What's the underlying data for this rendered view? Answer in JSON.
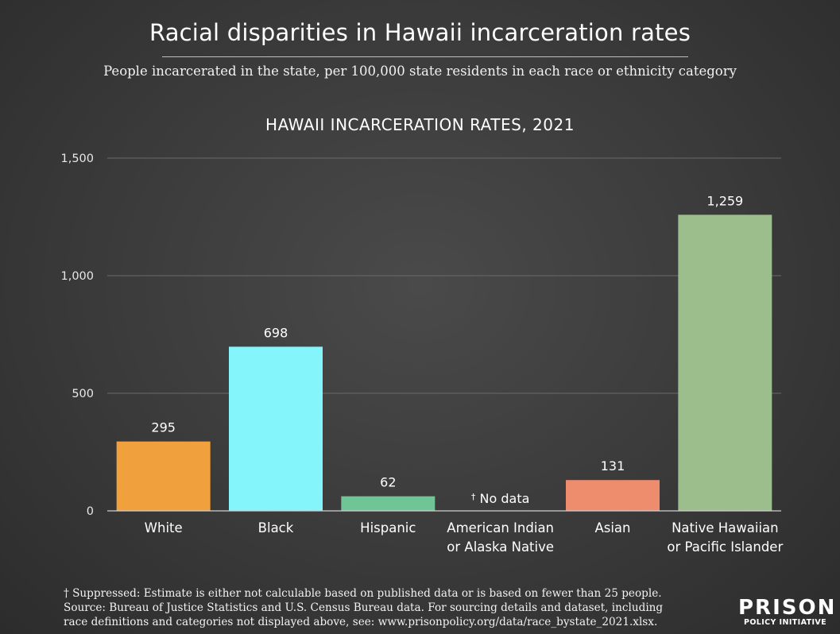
{
  "title": "Racial disparities in Hawaii incarceration rates",
  "subtitle": "People incarcerated in the state, per 100,000 state residents in each race or ethnicity category",
  "footnote": {
    "line1": "† Suppressed: Estimate is either not calculable based on published data or is based on fewer than 25 people.",
    "line2": "Source: Bureau of Justice Statistics and U.S. Census Bureau data. For sourcing details and dataset, including",
    "line3": "race definitions and categories not displayed above, see: www.prisonpolicy.org/data/race_bystate_2021.xlsx."
  },
  "logo": {
    "main": "PRISON",
    "sub": "POLICY INITIATIVE"
  },
  "chart_data": {
    "type": "bar",
    "title": "HAWAII INCARCERATION RATES, 2021",
    "xlabel": "",
    "ylabel": "",
    "ylim": [
      0,
      1500
    ],
    "yticks": [
      0,
      500,
      1000,
      1500
    ],
    "ytick_labels": [
      "0",
      "500",
      "1,000",
      "1,500"
    ],
    "grid": true,
    "categories": [
      [
        "White"
      ],
      [
        "Black"
      ],
      [
        "Hispanic"
      ],
      [
        "American Indian",
        "or Alaska Native"
      ],
      [
        "Asian"
      ],
      [
        "Native Hawaiian",
        "or Pacific Islander"
      ]
    ],
    "values": [
      295,
      698,
      62,
      null,
      131,
      1259
    ],
    "value_labels": [
      "295",
      "698",
      "62",
      "",
      "131",
      "1,259"
    ],
    "no_data_marker": "†",
    "no_data_label": "No data",
    "colors": [
      "#f0a03c",
      "#85f5fc",
      "#70c596",
      null,
      "#ee8c6e",
      "#9cbd8c"
    ],
    "grid_color": "#6a6a6a",
    "axis_color": "#cfcfcf"
  }
}
